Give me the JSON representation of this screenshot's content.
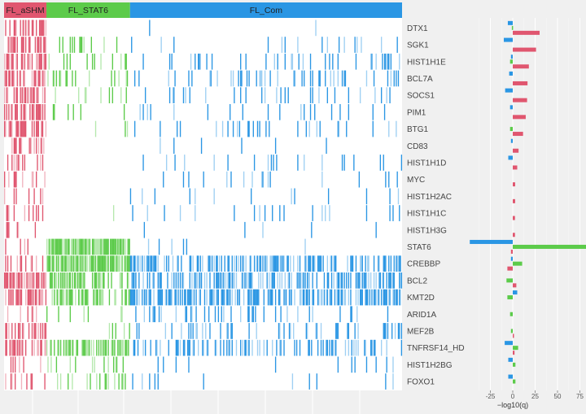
{
  "chart_data": {
    "type": "heatmap",
    "title": "",
    "groups": [
      {
        "name": "FL_aSHM",
        "color": "#e0566f",
        "samples": 40
      },
      {
        "name": "FL_STAT6",
        "color": "#5ccb4a",
        "samples": 79
      },
      {
        "name": "FL_Com",
        "color": "#2a96e4",
        "samples": 257
      }
    ],
    "genes": [
      "DTX1",
      "SGK1",
      "HIST1H1E",
      "BCL7A",
      "SOCS1",
      "PIM1",
      "BTG1",
      "CD83",
      "HIST1H1D",
      "MYC",
      "HIST1H2AC",
      "HIST1H1C",
      "HIST1H3G",
      "STAT6",
      "CREBBP",
      "BCL2",
      "KMT2D",
      "ARID1A",
      "MEF2B",
      "TNFRSF14_HD",
      "HIST1H2BG",
      "FOXO1"
    ],
    "mutation_frequency_by_group": [
      [
        0.5,
        0.0,
        0.01
      ],
      [
        0.5,
        0.12,
        0.05
      ],
      [
        0.55,
        0.15,
        0.1
      ],
      [
        0.6,
        0.2,
        0.15
      ],
      [
        0.5,
        0.2,
        0.1
      ],
      [
        0.55,
        0.05,
        0.1
      ],
      [
        0.5,
        0.02,
        0.12
      ],
      [
        0.25,
        0.02,
        0.04
      ],
      [
        0.3,
        0.03,
        0.08
      ],
      [
        0.15,
        0.0,
        0.05
      ],
      [
        0.12,
        0.0,
        0.05
      ],
      [
        0.15,
        0.02,
        0.06
      ],
      [
        0.1,
        0.0,
        0.02
      ],
      [
        0.1,
        0.95,
        0.02
      ],
      [
        0.2,
        0.85,
        0.5
      ],
      [
        0.75,
        0.35,
        0.5
      ],
      [
        0.65,
        0.5,
        0.6
      ],
      [
        0.25,
        0.1,
        0.15
      ],
      [
        0.35,
        0.05,
        0.15
      ],
      [
        0.55,
        0.6,
        0.3
      ],
      [
        0.15,
        0.08,
        0.03
      ],
      [
        0.25,
        0.25,
        0.06
      ]
    ],
    "enrichment": {
      "xlabel": "−log10(q)",
      "xlim": [
        -50,
        80
      ],
      "ticks": [
        "-25",
        "0",
        "25",
        "50",
        "75"
      ],
      "tick_values": [
        -25,
        0,
        25,
        50,
        75
      ],
      "series_order": [
        "FL_Com",
        "FL_STAT6",
        "FL_aSHM"
      ],
      "values": [
        [
          -5.5,
          -1,
          30
        ],
        [
          -10,
          0,
          26
        ],
        [
          -2,
          -3,
          18
        ],
        [
          -4,
          0,
          16.5
        ],
        [
          -8.5,
          0,
          16
        ],
        [
          -3,
          0,
          14.5
        ],
        [
          0,
          -3,
          11.5
        ],
        [
          -2,
          0,
          6.5
        ],
        [
          -5,
          0,
          5
        ],
        [
          0,
          0,
          2.7
        ],
        [
          0,
          0,
          2.7
        ],
        [
          0,
          0,
          2.5
        ],
        [
          0,
          0,
          2.5
        ],
        [
          -48,
          82,
          -2
        ],
        [
          -2,
          10.5,
          -6
        ],
        [
          0,
          -7,
          4
        ],
        [
          5,
          -6,
          0
        ],
        [
          0,
          -3,
          0
        ],
        [
          0,
          -2,
          1
        ],
        [
          -9,
          6,
          2
        ],
        [
          -5,
          3,
          0
        ],
        [
          -5,
          3,
          0
        ]
      ]
    }
  }
}
